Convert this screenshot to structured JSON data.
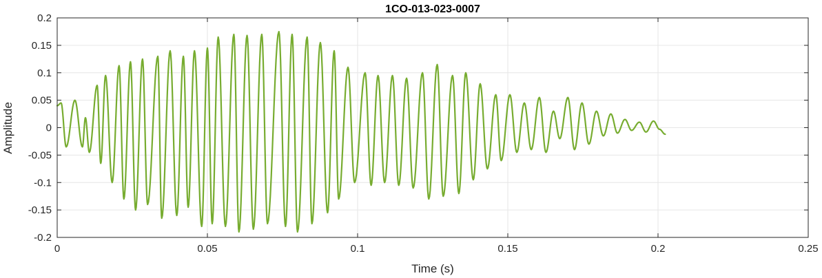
{
  "chart_data": {
    "type": "line",
    "title": "1CO-013-023-0007",
    "xlabel": "Time (s)",
    "ylabel": "Amplitude",
    "xlim": [
      0,
      0.25
    ],
    "ylim": [
      -0.2,
      0.2
    ],
    "xticks": [
      0,
      0.05,
      0.1,
      0.15,
      0.2,
      0.25
    ],
    "xtick_labels": [
      "0",
      "0.05",
      "0.1",
      "0.15",
      "0.2",
      "0.25"
    ],
    "yticks": [
      -0.2,
      -0.15,
      -0.1,
      -0.05,
      0,
      0.05,
      0.1,
      0.15,
      0.2
    ],
    "ytick_labels": [
      "-0.2",
      "-0.15",
      "-0.1",
      "-0.05",
      "0",
      "0.05",
      "0.1",
      "0.15",
      "0.2"
    ],
    "grid": true,
    "series": [
      {
        "color": "#77AC30",
        "x": [
          0.0,
          0.0013,
          0.003,
          0.0059,
          0.0084,
          0.0094,
          0.0107,
          0.0133,
          0.0145,
          0.0161,
          0.0183,
          0.0206,
          0.0222,
          0.0244,
          0.0261,
          0.0284,
          0.0301,
          0.0335,
          0.0348,
          0.0376,
          0.0398,
          0.042,
          0.0436,
          0.0457,
          0.0481,
          0.05,
          0.0516,
          0.0536,
          0.056,
          0.0588,
          0.0605,
          0.0632,
          0.0653,
          0.0681,
          0.07,
          0.0738,
          0.076,
          0.0782,
          0.08,
          0.0832,
          0.0848,
          0.0876,
          0.09,
          0.0922,
          0.0937,
          0.0968,
          0.099,
          0.1025,
          0.1045,
          0.1068,
          0.109,
          0.1116,
          0.1137,
          0.1163,
          0.1185,
          0.1216,
          0.1237,
          0.1265,
          0.1285,
          0.1316,
          0.1337,
          0.136,
          0.1385,
          0.1408,
          0.1432,
          0.146,
          0.1478,
          0.1507,
          0.153,
          0.1555,
          0.1578,
          0.1605,
          0.1627,
          0.1652,
          0.1673,
          0.17,
          0.1722,
          0.1747,
          0.177,
          0.1795,
          0.1818,
          0.1843,
          0.1865,
          0.189,
          0.1912,
          0.1938,
          0.196,
          0.1985,
          0.2005,
          0.2024
        ],
        "y": [
          0.04,
          0.045,
          -0.035,
          0.05,
          -0.035,
          0.018,
          -0.045,
          0.077,
          -0.065,
          0.095,
          -0.1,
          0.113,
          -0.13,
          0.12,
          -0.15,
          0.125,
          -0.14,
          0.13,
          -0.165,
          0.14,
          -0.16,
          0.13,
          -0.145,
          0.14,
          -0.18,
          0.145,
          -0.175,
          0.165,
          -0.18,
          0.17,
          -0.19,
          0.168,
          -0.185,
          0.17,
          -0.175,
          0.175,
          -0.18,
          0.17,
          -0.19,
          0.165,
          -0.175,
          0.155,
          -0.155,
          0.14,
          -0.13,
          0.11,
          -0.1,
          0.1,
          -0.105,
          0.095,
          -0.1,
          0.095,
          -0.105,
          0.09,
          -0.11,
          0.1,
          -0.13,
          0.115,
          -0.125,
          0.095,
          -0.12,
          0.1,
          -0.095,
          0.08,
          -0.075,
          0.06,
          -0.06,
          0.06,
          -0.045,
          0.045,
          -0.04,
          0.055,
          -0.045,
          0.03,
          -0.02,
          0.055,
          -0.04,
          0.045,
          -0.03,
          0.03,
          -0.015,
          0.025,
          -0.01,
          0.015,
          -0.005,
          0.01,
          -0.008,
          0.012,
          -0.003,
          -0.012
        ]
      }
    ]
  }
}
